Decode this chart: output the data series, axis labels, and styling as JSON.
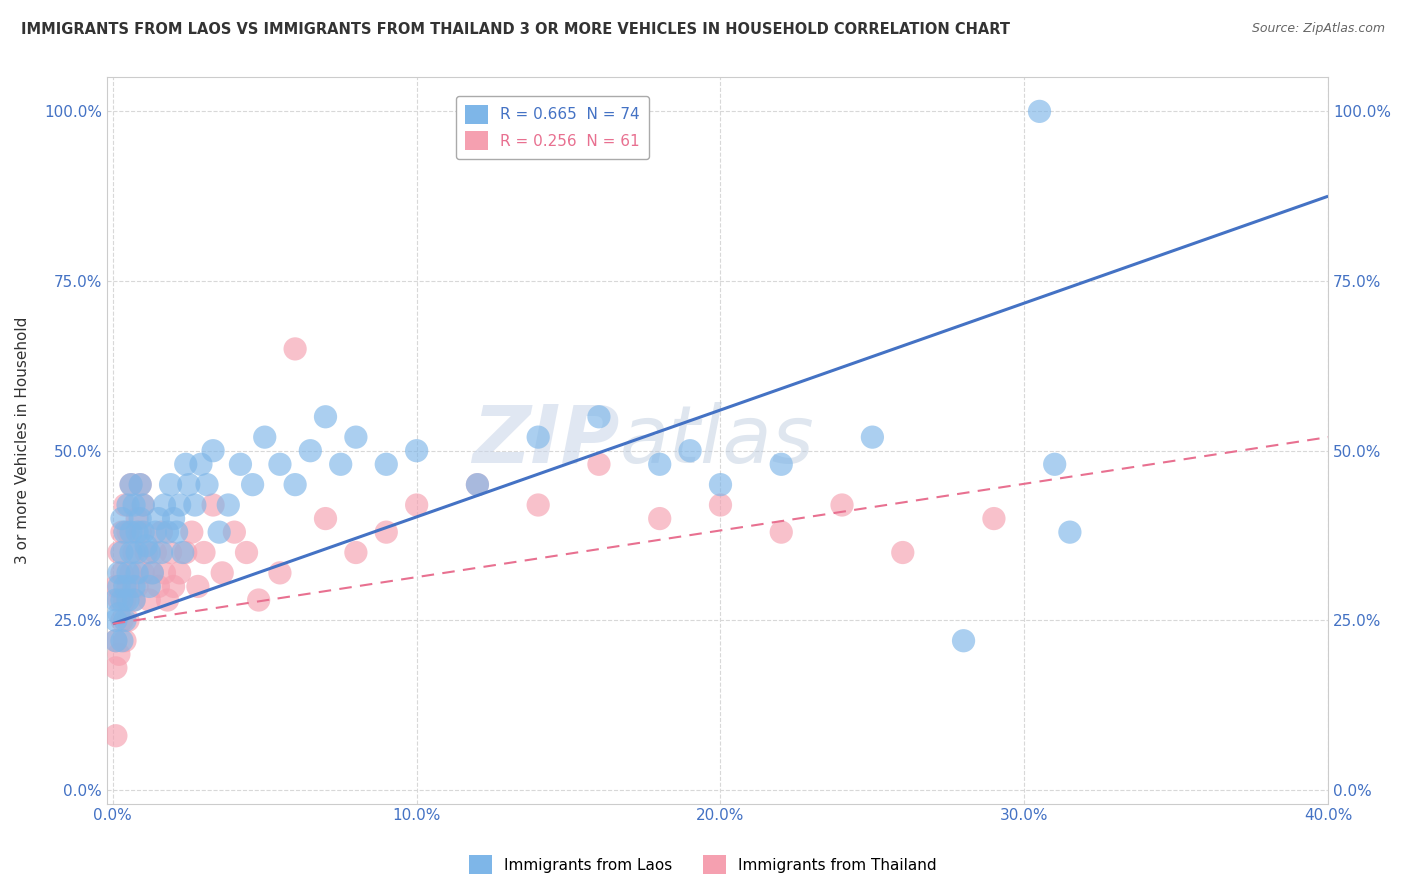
{
  "title": "IMMIGRANTS FROM LAOS VS IMMIGRANTS FROM THAILAND 3 OR MORE VEHICLES IN HOUSEHOLD CORRELATION CHART",
  "source": "Source: ZipAtlas.com",
  "ylabel": "3 or more Vehicles in Household",
  "ytick_values": [
    0.0,
    0.25,
    0.5,
    0.75,
    1.0
  ],
  "xtick_values": [
    0.0,
    0.1,
    0.2,
    0.3,
    0.4
  ],
  "xlim": [
    -0.002,
    0.4
  ],
  "ylim": [
    -0.02,
    1.05
  ],
  "laos_color": "#7EB6E8",
  "thailand_color": "#F5A0B0",
  "laos_R": 0.665,
  "laos_N": 74,
  "thailand_R": 0.256,
  "thailand_N": 61,
  "laos_line_color": "#4472C4",
  "thailand_line_color": "#E87090",
  "watermark": "ZIPatlas",
  "background_color": "#FFFFFF",
  "grid_color": "#D8D8D8",
  "laos_line_x0": 0.0,
  "laos_line_y0": 0.245,
  "laos_line_x1": 0.4,
  "laos_line_y1": 0.875,
  "thailand_line_x0": 0.0,
  "thailand_line_y0": 0.245,
  "thailand_line_x1": 0.4,
  "thailand_line_y1": 0.52,
  "laos_scatter_x": [
    0.001,
    0.001,
    0.001,
    0.002,
    0.002,
    0.002,
    0.003,
    0.003,
    0.003,
    0.003,
    0.004,
    0.004,
    0.004,
    0.005,
    0.005,
    0.005,
    0.006,
    0.006,
    0.006,
    0.007,
    0.007,
    0.007,
    0.008,
    0.008,
    0.008,
    0.009,
    0.009,
    0.01,
    0.01,
    0.011,
    0.012,
    0.012,
    0.013,
    0.014,
    0.015,
    0.016,
    0.017,
    0.018,
    0.019,
    0.02,
    0.021,
    0.022,
    0.023,
    0.024,
    0.025,
    0.027,
    0.029,
    0.031,
    0.033,
    0.035,
    0.038,
    0.042,
    0.046,
    0.05,
    0.055,
    0.06,
    0.065,
    0.07,
    0.075,
    0.08,
    0.09,
    0.1,
    0.12,
    0.14,
    0.16,
    0.18,
    0.19,
    0.2,
    0.22,
    0.25,
    0.28,
    0.305,
    0.31,
    0.315
  ],
  "laos_scatter_y": [
    0.25,
    0.28,
    0.22,
    0.3,
    0.26,
    0.32,
    0.28,
    0.35,
    0.22,
    0.4,
    0.3,
    0.38,
    0.25,
    0.32,
    0.42,
    0.28,
    0.35,
    0.38,
    0.45,
    0.3,
    0.28,
    0.42,
    0.38,
    0.35,
    0.32,
    0.4,
    0.45,
    0.38,
    0.42,
    0.36,
    0.3,
    0.35,
    0.32,
    0.38,
    0.4,
    0.35,
    0.42,
    0.38,
    0.45,
    0.4,
    0.38,
    0.42,
    0.35,
    0.48,
    0.45,
    0.42,
    0.48,
    0.45,
    0.5,
    0.38,
    0.42,
    0.48,
    0.45,
    0.52,
    0.48,
    0.45,
    0.5,
    0.55,
    0.48,
    0.52,
    0.48,
    0.5,
    0.45,
    0.52,
    0.55,
    0.48,
    0.5,
    0.45,
    0.48,
    0.52,
    0.22,
    1.0,
    0.48,
    0.38
  ],
  "thailand_scatter_x": [
    0.001,
    0.001,
    0.001,
    0.002,
    0.002,
    0.002,
    0.003,
    0.003,
    0.003,
    0.004,
    0.004,
    0.004,
    0.005,
    0.005,
    0.005,
    0.006,
    0.006,
    0.007,
    0.007,
    0.008,
    0.008,
    0.009,
    0.009,
    0.01,
    0.01,
    0.011,
    0.012,
    0.013,
    0.014,
    0.015,
    0.016,
    0.017,
    0.018,
    0.019,
    0.02,
    0.022,
    0.024,
    0.026,
    0.028,
    0.03,
    0.033,
    0.036,
    0.04,
    0.044,
    0.048,
    0.055,
    0.06,
    0.07,
    0.08,
    0.09,
    0.1,
    0.12,
    0.14,
    0.16,
    0.18,
    0.2,
    0.22,
    0.24,
    0.26,
    0.29,
    0.001
  ],
  "thailand_scatter_y": [
    0.22,
    0.3,
    0.18,
    0.28,
    0.35,
    0.2,
    0.32,
    0.25,
    0.38,
    0.28,
    0.22,
    0.42,
    0.3,
    0.38,
    0.25,
    0.45,
    0.32,
    0.28,
    0.35,
    0.4,
    0.3,
    0.38,
    0.45,
    0.32,
    0.42,
    0.35,
    0.28,
    0.32,
    0.35,
    0.3,
    0.38,
    0.32,
    0.28,
    0.35,
    0.3,
    0.32,
    0.35,
    0.38,
    0.3,
    0.35,
    0.42,
    0.32,
    0.38,
    0.35,
    0.28,
    0.32,
    0.65,
    0.4,
    0.35,
    0.38,
    0.42,
    0.45,
    0.42,
    0.48,
    0.4,
    0.42,
    0.38,
    0.42,
    0.35,
    0.4,
    0.08
  ]
}
